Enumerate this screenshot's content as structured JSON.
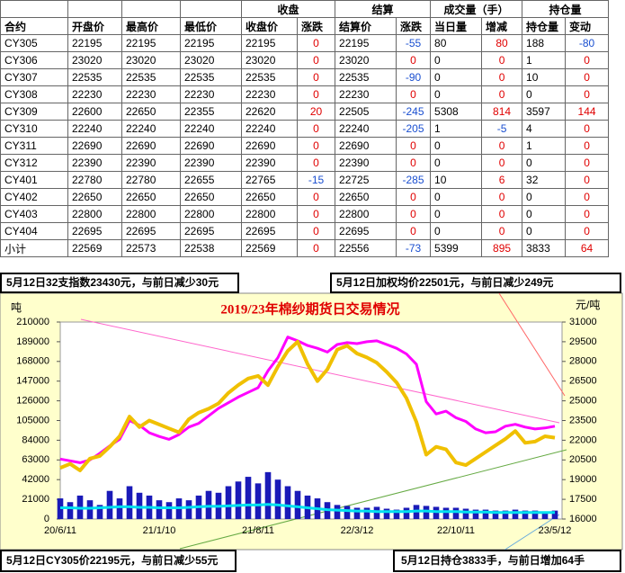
{
  "table": {
    "group_headers": [
      "收盘",
      "结算",
      "成交量（手）",
      "持仓量"
    ],
    "columns": [
      "合约",
      "开盘价",
      "最高价",
      "最低价",
      "收盘价",
      "涨跌",
      "结算价",
      "涨跌",
      "当日量",
      "增减",
      "持仓量",
      "变动"
    ],
    "rows": [
      [
        "CY305",
        "22195",
        "22195",
        "22195",
        "22195",
        "0",
        "22195",
        "-55",
        "80",
        "80",
        "188",
        "-80"
      ],
      [
        "CY306",
        "23020",
        "23020",
        "23020",
        "23020",
        "0",
        "23020",
        "0",
        "0",
        "0",
        "1",
        "0"
      ],
      [
        "CY307",
        "22535",
        "22535",
        "22535",
        "22535",
        "0",
        "22535",
        "-90",
        "0",
        "0",
        "10",
        "0"
      ],
      [
        "CY308",
        "22230",
        "22230",
        "22230",
        "22230",
        "0",
        "22230",
        "0",
        "0",
        "0",
        "0",
        "0"
      ],
      [
        "CY309",
        "22600",
        "22650",
        "22355",
        "22620",
        "20",
        "22505",
        "-245",
        "5308",
        "814",
        "3597",
        "144"
      ],
      [
        "CY310",
        "22240",
        "22240",
        "22240",
        "22240",
        "0",
        "22240",
        "-205",
        "1",
        "-5",
        "4",
        "0"
      ],
      [
        "CY311",
        "22690",
        "22690",
        "22690",
        "22690",
        "0",
        "22690",
        "0",
        "0",
        "0",
        "1",
        "0"
      ],
      [
        "CY312",
        "22390",
        "22390",
        "22390",
        "22390",
        "0",
        "22390",
        "0",
        "0",
        "0",
        "0",
        "0"
      ],
      [
        "CY401",
        "22780",
        "22780",
        "22655",
        "22765",
        "-15",
        "22725",
        "-285",
        "10",
        "6",
        "32",
        "0"
      ],
      [
        "CY402",
        "22650",
        "22650",
        "22650",
        "22650",
        "0",
        "22650",
        "0",
        "0",
        "0",
        "0",
        "0"
      ],
      [
        "CY403",
        "22800",
        "22800",
        "22800",
        "22800",
        "0",
        "22800",
        "0",
        "0",
        "0",
        "0",
        "0"
      ],
      [
        "CY404",
        "22695",
        "22695",
        "22695",
        "22695",
        "0",
        "22695",
        "0",
        "0",
        "0",
        "0",
        "0"
      ],
      [
        "小计",
        "22569",
        "22573",
        "22538",
        "22569",
        "0",
        "22556",
        "-73",
        "5399",
        "895",
        "3833",
        "64"
      ]
    ]
  },
  "notes": {
    "top_left": "5月12日32支指数23430元，与前日减少30元",
    "top_right": "5月12日加权均价22501元，与前日减少249元",
    "bottom_left": "5月12日CY305价22195元，与前日减少55元",
    "bottom_right": "5月12日持仓3833手，与前日增加64手"
  },
  "chart_data": {
    "type": "line",
    "title": "2019/23年棉纱期货日交易情况",
    "y_label": "吨",
    "y2_label": "元/吨",
    "categories": [
      "20/6/11",
      null,
      null,
      null,
      null,
      null,
      null,
      null,
      null,
      null,
      "21/1/10",
      null,
      null,
      null,
      null,
      null,
      null,
      null,
      null,
      null,
      "21/8/11",
      null,
      null,
      null,
      null,
      null,
      null,
      null,
      null,
      null,
      "22/3/12",
      null,
      null,
      null,
      null,
      null,
      null,
      null,
      null,
      null,
      "22/10/11",
      null,
      null,
      null,
      null,
      null,
      null,
      null,
      null,
      null,
      "23/5/12"
    ],
    "ylim": [
      0,
      210000
    ],
    "yticks": [
      0,
      21000,
      42000,
      63000,
      84000,
      105000,
      126000,
      147000,
      168000,
      189000,
      210000
    ],
    "y2lim": [
      16000,
      31000
    ],
    "y2ticks": [
      16000,
      17500,
      19000,
      20500,
      22000,
      23500,
      25000,
      26500,
      28000,
      29500,
      31000
    ],
    "series": [
      {
        "type": "bar",
        "color": "#1a1ab8",
        "values": [
          22000,
          18000,
          25000,
          20000,
          15000,
          30000,
          22000,
          35000,
          28000,
          25000,
          20000,
          18000,
          22000,
          20000,
          25000,
          30000,
          28000,
          35000,
          40000,
          45000,
          38000,
          50000,
          42000,
          35000,
          30000,
          25000,
          22000,
          18000,
          15000,
          14000,
          12000,
          12000,
          13000,
          11000,
          10000,
          12000,
          15000,
          14000,
          13000,
          12000,
          12000,
          11000,
          10000,
          10000,
          9000,
          9000,
          10000,
          9000,
          9000,
          8000,
          9000
        ]
      },
      {
        "type": "line",
        "color": "#00e0f0",
        "values": [
          12000,
          12000,
          11500,
          11500,
          12000,
          12500,
          13000,
          13000,
          12500,
          12500,
          12000,
          12000,
          12000,
          12500,
          13000,
          13500,
          13500,
          14000,
          14500,
          15000,
          15000,
          15500,
          15000,
          14000,
          13000,
          12000,
          11000,
          10000,
          9500,
          9000,
          8500,
          8500,
          8000,
          8000,
          8000,
          8000,
          8500,
          8500,
          8000,
          8000,
          8000,
          7500,
          7500,
          7500,
          7000,
          7000,
          7000,
          7000,
          7000,
          7000,
          7000
        ]
      },
      {
        "type": "line",
        "color": "#ff00ff",
        "values": [
          64000,
          62000,
          60000,
          63000,
          70000,
          78000,
          85000,
          105000,
          100000,
          92000,
          88000,
          85000,
          90000,
          98000,
          102000,
          110000,
          118000,
          124000,
          130000,
          135000,
          140000,
          158000,
          172000,
          194000,
          190000,
          185000,
          182000,
          178000,
          186000,
          188000,
          187000,
          189000,
          190000,
          186000,
          182000,
          176000,
          165000,
          125000,
          112000,
          115000,
          108000,
          104000,
          96000,
          92000,
          93000,
          99000,
          101000,
          98000,
          96000,
          97000,
          99000
        ]
      },
      {
        "type": "line",
        "axis": "y2",
        "color": "#f0c000",
        "values": [
          19900,
          20200,
          19700,
          20600,
          20800,
          21500,
          22300,
          23800,
          23000,
          23500,
          23200,
          22900,
          22600,
          23600,
          24100,
          24400,
          24800,
          25600,
          26200,
          26700,
          26900,
          26200,
          27600,
          28800,
          29500,
          27800,
          26500,
          27400,
          28900,
          29200,
          28600,
          28300,
          27900,
          27200,
          26400,
          25200,
          23400,
          20900,
          21500,
          21300,
          20300,
          20100,
          20600,
          21100,
          21600,
          22100,
          22700,
          21800,
          21900,
          22300,
          22195
        ]
      }
    ]
  }
}
